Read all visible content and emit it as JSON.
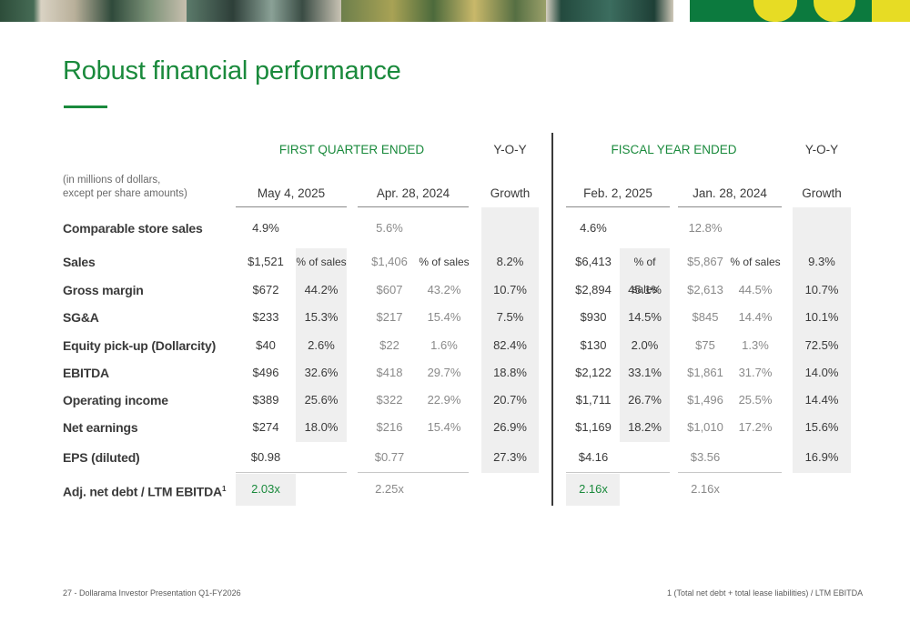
{
  "title": "Robust financial performance",
  "headers": {
    "first_quarter": "FIRST QUARTER ENDED",
    "fiscal_year": "FISCAL YEAR ENDED",
    "yoy": "Y-O-Y",
    "growth": "Growth",
    "note_line1": "(in millions of dollars,",
    "note_line2": "except per share amounts)",
    "q_current": "May 4, 2025",
    "q_prior": "Apr. 28, 2024",
    "fy_current": "Feb. 2, 2025",
    "fy_prior": "Jan. 28, 2024",
    "pct_sales": "% of sales"
  },
  "rows": [
    {
      "label": "Comparable store sales",
      "q_cur": "4.9%",
      "q_cur_pct": "",
      "q_pri": "5.6%",
      "q_pri_pct": "",
      "q_yoy": "",
      "fy_cur": "4.6%",
      "fy_cur_pct": "",
      "fy_pri": "12.8%",
      "fy_pri_pct": "",
      "fy_yoy": ""
    },
    {
      "label": "Sales",
      "q_cur": "$1,521",
      "q_cur_pct": "% of sales",
      "q_pri": "$1,406",
      "q_pri_pct": "% of sales",
      "q_yoy": "8.2%",
      "fy_cur": "$6,413",
      "fy_cur_pct": "% of sales",
      "fy_pri": "$5,867",
      "fy_pri_pct": "% of sales",
      "fy_yoy": "9.3%"
    },
    {
      "label": "Gross margin",
      "q_cur": "$672",
      "q_cur_pct": "44.2%",
      "q_pri": "$607",
      "q_pri_pct": "43.2%",
      "q_yoy": "10.7%",
      "fy_cur": "$2,894",
      "fy_cur_pct": "45.1%",
      "fy_pri": "$2,613",
      "fy_pri_pct": "44.5%",
      "fy_yoy": "10.7%"
    },
    {
      "label": "SG&A",
      "q_cur": "$233",
      "q_cur_pct": "15.3%",
      "q_pri": "$217",
      "q_pri_pct": "15.4%",
      "q_yoy": "7.5%",
      "fy_cur": "$930",
      "fy_cur_pct": "14.5%",
      "fy_pri": "$845",
      "fy_pri_pct": "14.4%",
      "fy_yoy": "10.1%"
    },
    {
      "label": "Equity pick-up (Dollarcity)",
      "q_cur": "$40",
      "q_cur_pct": "2.6%",
      "q_pri": "$22",
      "q_pri_pct": "1.6%",
      "q_yoy": "82.4%",
      "fy_cur": "$130",
      "fy_cur_pct": "2.0%",
      "fy_pri": "$75",
      "fy_pri_pct": "1.3%",
      "fy_yoy": "72.5%"
    },
    {
      "label": "EBITDA",
      "q_cur": "$496",
      "q_cur_pct": "32.6%",
      "q_pri": "$418",
      "q_pri_pct": "29.7%",
      "q_yoy": "18.8%",
      "fy_cur": "$2,122",
      "fy_cur_pct": "33.1%",
      "fy_pri": "$1,861",
      "fy_pri_pct": "31.7%",
      "fy_yoy": "14.0%"
    },
    {
      "label": "Operating income",
      "q_cur": "$389",
      "q_cur_pct": "25.6%",
      "q_pri": "$322",
      "q_pri_pct": "22.9%",
      "q_yoy": "20.7%",
      "fy_cur": "$1,711",
      "fy_cur_pct": "26.7%",
      "fy_pri": "$1,496",
      "fy_pri_pct": "25.5%",
      "fy_yoy": "14.4%"
    },
    {
      "label": "Net earnings",
      "q_cur": "$274",
      "q_cur_pct": "18.0%",
      "q_pri": "$216",
      "q_pri_pct": "15.4%",
      "q_yoy": "26.9%",
      "fy_cur": "$1,169",
      "fy_cur_pct": "18.2%",
      "fy_pri": "$1,010",
      "fy_pri_pct": "17.2%",
      "fy_yoy": "15.6%"
    },
    {
      "label": "EPS (diluted)",
      "q_cur": "$0.98",
      "q_cur_pct": "",
      "q_pri": "$0.77",
      "q_pri_pct": "",
      "q_yoy": "27.3%",
      "fy_cur": "$4.16",
      "fy_cur_pct": "",
      "fy_pri": "$3.56",
      "fy_pri_pct": "",
      "fy_yoy": "16.9%"
    },
    {
      "label": "Adj. net debt / LTM EBITDA",
      "sup": "1",
      "q_cur": "2.03x",
      "q_cur_pct": "",
      "q_pri": "2.25x",
      "q_pri_pct": "",
      "q_yoy": "",
      "fy_cur": "2.16x",
      "fy_cur_pct": "",
      "fy_pri": "2.16x",
      "fy_pri_pct": "",
      "fy_yoy": ""
    }
  ],
  "footer": {
    "left": "27 - Dollarama Investor Presentation Q1-FY2026",
    "right": "1 (Total net debt + total lease liabilities) / LTM EBITDA"
  },
  "colors": {
    "accent": "#1a8a3c",
    "brand_yellow": "#e7dc24",
    "brand_green": "#0c7a3e",
    "shade": "#efefef"
  }
}
